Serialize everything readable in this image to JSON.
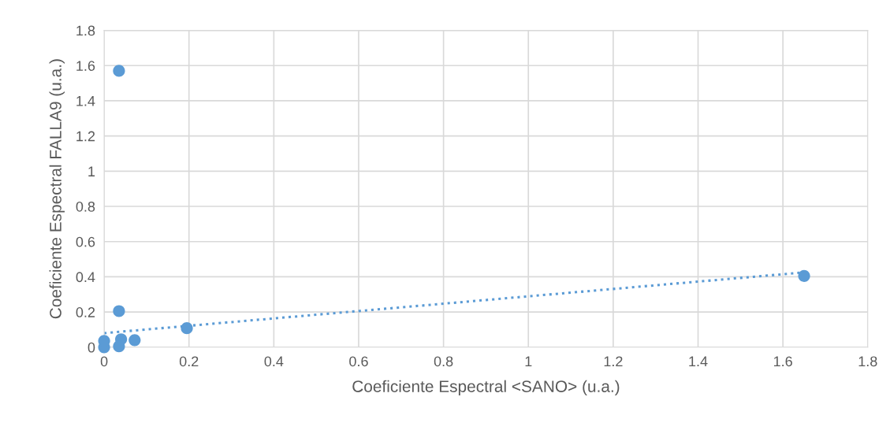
{
  "chart_data": {
    "type": "scatter",
    "xlabel": "Coeficiente Espectral <SANO> (u.a.)",
    "ylabel": "Coeficiente Espectral FALLA9 (u.a.)",
    "series": [
      {
        "color": "#5b9bd5",
        "marker": "circle",
        "x": [
          0,
          0,
          0.035,
          0.035,
          0.04,
          0.035,
          0.072,
          0.195,
          1.65
        ],
        "values": [
          0,
          0.036,
          1.57,
          0.205,
          0.045,
          0.005,
          0.04,
          0.108,
          0.405
        ]
      },
      {
        "type": "line",
        "color": "#5b9bd5",
        "marker": "none",
        "line_style": "dotted",
        "x": [
          0,
          1.65
        ],
        "values": [
          0.08,
          0.425
        ]
      }
    ],
    "xlim": [
      0,
      1.8
    ],
    "xticks": [
      0,
      0.2,
      0.4,
      0.6,
      0.8,
      1,
      1.2,
      1.4,
      1.6,
      1.8
    ],
    "ylim": [
      0,
      1.8
    ],
    "yticks": [
      0,
      0.2,
      0.4,
      0.6,
      0.8,
      1,
      1.2,
      1.4,
      1.6,
      1.8
    ],
    "grid": true,
    "legend": false
  }
}
